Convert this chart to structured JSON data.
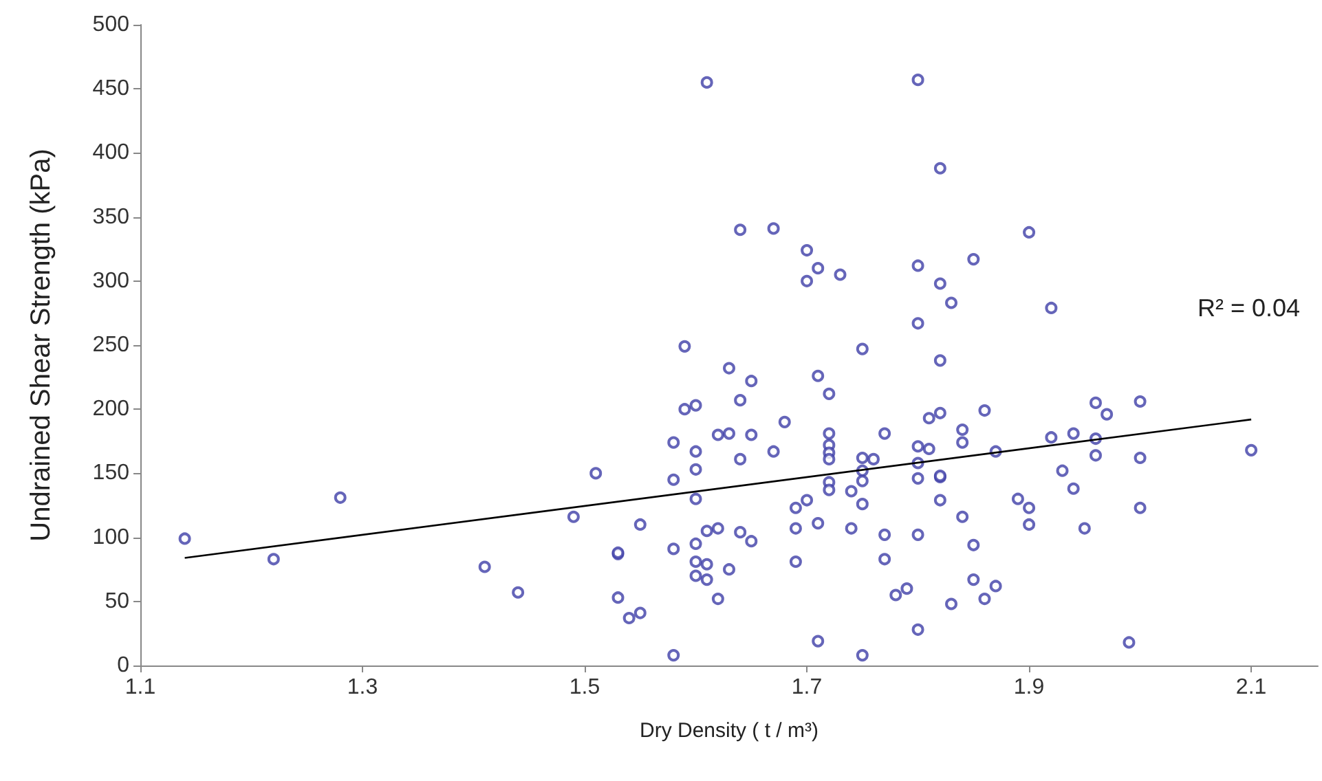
{
  "chart_data": {
    "type": "scatter",
    "xlabel": "Dry Density ( t / m³)",
    "ylabel": "Undrained Shear Strength (kPa)",
    "annotations": [
      "R² = 0.04"
    ],
    "xlim": [
      1.1,
      2.16
    ],
    "xticks": [
      1.1,
      1.3,
      1.5,
      1.7,
      1.9,
      2.1
    ],
    "ylim": [
      0,
      500
    ],
    "yticks": [
      0,
      50,
      100,
      150,
      200,
      250,
      300,
      350,
      400,
      450,
      500
    ],
    "grid": false,
    "marker": "circle",
    "series": [
      {
        "color": "#3f3fa8",
        "x": [
          1.14,
          1.22,
          1.28,
          1.41,
          1.44,
          1.61,
          1.8,
          1.64,
          1.67,
          1.7,
          1.71,
          1.73,
          1.7,
          1.8,
          1.8,
          1.82,
          1.9,
          1.85,
          1.82,
          1.83,
          1.92,
          1.59,
          1.75,
          1.63,
          1.65,
          1.71,
          1.72,
          1.64,
          1.59,
          1.6,
          1.68,
          1.81,
          1.62,
          1.63,
          1.65,
          1.72,
          1.77,
          1.58,
          1.6,
          1.67,
          1.72,
          1.72,
          1.72,
          1.64,
          1.75,
          1.76,
          1.8,
          1.81,
          1.8,
          1.8,
          1.6,
          1.58,
          1.75,
          1.75,
          1.72,
          1.72,
          1.74,
          1.51,
          1.6,
          1.7,
          1.69,
          1.75,
          1.49,
          1.55,
          1.61,
          1.62,
          1.64,
          1.69,
          1.71,
          1.74,
          1.77,
          1.8,
          1.65,
          1.6,
          1.53,
          1.53,
          1.58,
          1.6,
          1.61,
          1.63,
          1.69,
          1.77,
          1.6,
          1.61,
          1.62,
          1.53,
          1.54,
          1.55,
          1.78,
          1.79,
          1.8,
          1.71,
          1.58,
          1.75,
          1.82,
          1.82,
          1.86,
          1.84,
          1.84,
          1.87,
          1.82,
          1.82,
          1.82,
          1.84,
          1.85,
          1.85,
          1.87,
          1.86,
          1.83,
          1.92,
          1.94,
          1.96,
          1.97,
          2.0,
          1.96,
          1.96,
          2.0,
          1.93,
          1.94,
          1.89,
          1.9,
          1.9,
          1.95,
          2.0,
          2.1,
          1.99
        ],
        "values": [
          99,
          83,
          131,
          77,
          57,
          455,
          457,
          340,
          341,
          324,
          310,
          305,
          300,
          312,
          267,
          388,
          338,
          317,
          298,
          283,
          279,
          249,
          247,
          232,
          222,
          226,
          212,
          207,
          200,
          203,
          190,
          193,
          180,
          181,
          180,
          181,
          181,
          174,
          167,
          167,
          172,
          166,
          161,
          161,
          162,
          161,
          171,
          169,
          158,
          146,
          153,
          145,
          152,
          144,
          143,
          137,
          136,
          150,
          130,
          129,
          123,
          126,
          116,
          110,
          105,
          107,
          104,
          107,
          111,
          107,
          102,
          102,
          97,
          95,
          87,
          88,
          91,
          81,
          79,
          75,
          81,
          83,
          70,
          67,
          52,
          53,
          37,
          41,
          55,
          60,
          28,
          19,
          8,
          8,
          238,
          197,
          199,
          184,
          174,
          167,
          147,
          148,
          129,
          116,
          94,
          67,
          62,
          52,
          48,
          178,
          181,
          205,
          196,
          206,
          177,
          164,
          162,
          152,
          138,
          130,
          123,
          110,
          107,
          123,
          168,
          18
        ]
      },
      {
        "type": "line",
        "color": "#000000",
        "marker": "none",
        "x": [
          1.14,
          2.1
        ],
        "values": [
          84,
          192
        ]
      }
    ]
  }
}
